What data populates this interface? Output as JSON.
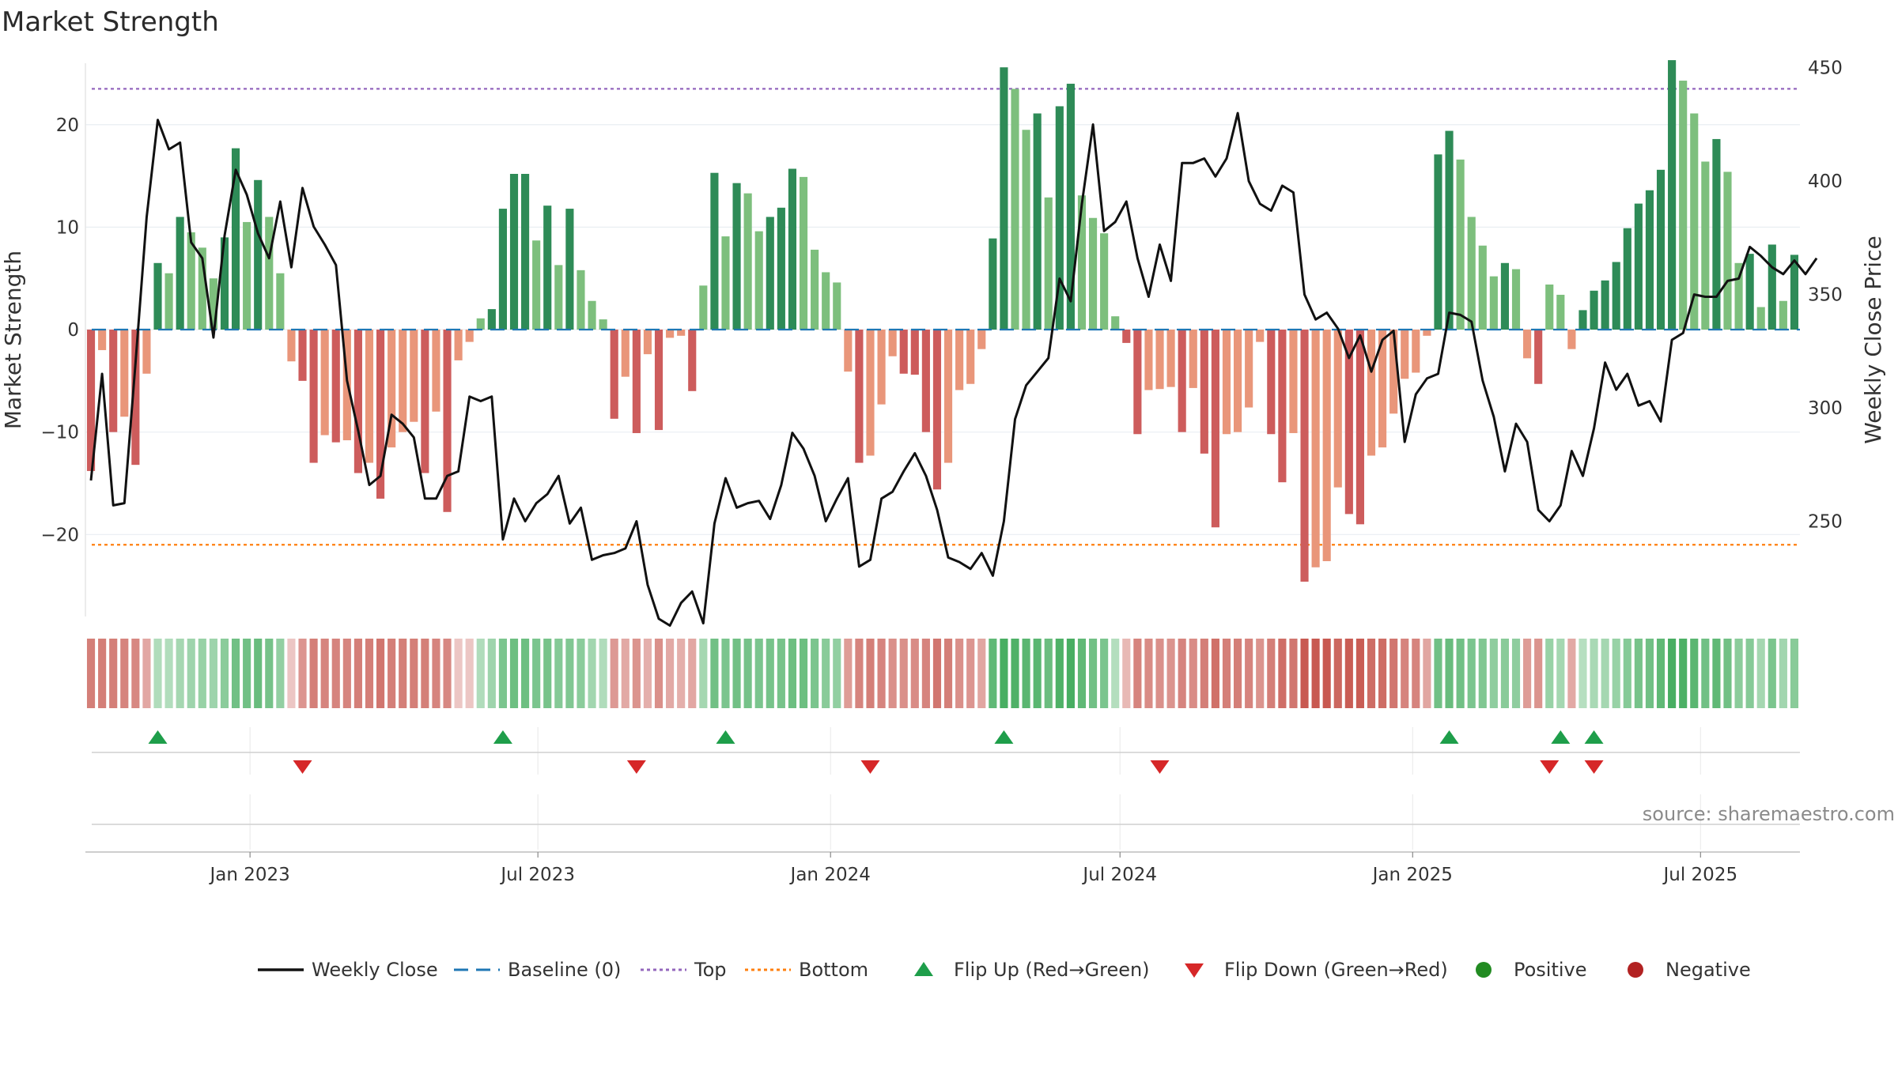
{
  "title": "Market Strength",
  "source": "source: sharemaestro.com",
  "colors": {
    "pos_dark": "#2e8b57",
    "pos_light": "#7dbf7d",
    "neg_dark": "#cd5c5c",
    "neg_light": "#e9967a",
    "line": "#111111",
    "baseline": "#1f77b4",
    "top": "#9467bd",
    "bottom": "#ff7f0e",
    "flip_up": "#1e9e4a",
    "flip_down": "#d62728",
    "positive": "#228b22",
    "negative": "#b22222"
  },
  "chart_data": {
    "type": "bar+line",
    "title": "Market Strength",
    "ylabel_left": "Market Strength",
    "ylabel_right": "Weekly Close Price",
    "ylim_left": [
      -28,
      26
    ],
    "ylim_right": [
      208,
      452
    ],
    "yticks_left": [
      20,
      10,
      0,
      -10,
      -20
    ],
    "ytick_labels_left": [
      "20",
      "10",
      "0",
      "−10",
      "−20"
    ],
    "yticks_right": [
      450,
      400,
      350,
      300,
      250
    ],
    "ytick_labels_right": [
      "450",
      "400",
      "350",
      "300",
      "250"
    ],
    "top_level": 23.5,
    "bottom_level": -21,
    "baseline": 0,
    "x_start": "2022-09-23",
    "week_days": 7,
    "x_ticks": [
      {
        "date": "2023-01-01",
        "label": "Jan 2023"
      },
      {
        "date": "2023-07-01",
        "label": "Jul 2023"
      },
      {
        "date": "2024-01-01",
        "label": "Jan 2024"
      },
      {
        "date": "2024-07-01",
        "label": "Jul 2024"
      },
      {
        "date": "2025-01-01",
        "label": "Jan 2025"
      },
      {
        "date": "2025-07-01",
        "label": "Jul 2025"
      }
    ],
    "strength": [
      -13.8,
      -2,
      -10,
      -8.5,
      -13.2,
      -4.3,
      6.5,
      5.5,
      11,
      9.5,
      8,
      5,
      9,
      17.7,
      10.5,
      14.6,
      11,
      5.5,
      -3.1,
      -5,
      -13,
      -10.3,
      -11,
      -10.8,
      -14,
      -13,
      -16.5,
      -11.5,
      -10,
      -9,
      -14,
      -8,
      -17.8,
      -3,
      -1.2,
      1.1,
      2,
      11.8,
      15.2,
      15.2,
      8.7,
      12.1,
      6.3,
      11.8,
      5.8,
      2.8,
      1,
      -8.7,
      -4.6,
      -10.1,
      -2.4,
      -9.8,
      -0.8,
      -0.6,
      -6,
      4.3,
      15.3,
      9.1,
      14.3,
      13.3,
      9.6,
      11,
      11.9,
      15.7,
      14.9,
      7.8,
      5.6,
      4.6,
      -4.1,
      -13,
      -12.3,
      -7.3,
      -2.6,
      -4.3,
      -4.4,
      -10,
      -15.6,
      -13,
      -5.9,
      -5.3,
      -1.9,
      8.9,
      25.6,
      23.5,
      19.5,
      21.1,
      12.9,
      21.8,
      24,
      13.1,
      10.9,
      9.4,
      1.3,
      -1.3,
      -10.2,
      -5.9,
      -5.8,
      -5.6,
      -10,
      -5.7,
      -12.1,
      -19.3,
      -10.2,
      -10,
      -7.6,
      -1.2,
      -10.2,
      -14.9,
      -10.1,
      -24.6,
      -23.2,
      -22.6,
      -15.4,
      -18,
      -19,
      -12.3,
      -11.5,
      -8.2,
      -4.8,
      -4.2,
      -0.6,
      17.1,
      19.4,
      16.6,
      11,
      8.2,
      5.2,
      6.5,
      5.9,
      -2.8,
      -5.3,
      4.4,
      3.4,
      -1.9,
      1.9,
      3.8,
      4.8,
      6.6,
      9.9,
      12.3,
      13.6,
      15.6,
      26.3,
      24.3,
      21.1,
      16.4,
      18.6,
      15.4,
      6.5,
      7.4,
      2.2,
      8.3,
      2.8,
      7.3
    ],
    "weekly_close": [
      268,
      315,
      257,
      258,
      320,
      384,
      427,
      414,
      417,
      373,
      366,
      331,
      376,
      405,
      394,
      377,
      366,
      391,
      362,
      397,
      380,
      372,
      363,
      312,
      290,
      266,
      270,
      297,
      293,
      287,
      260,
      260,
      270,
      272,
      305,
      303,
      305,
      242,
      260,
      250,
      258,
      262,
      270,
      249,
      256,
      233,
      235,
      236,
      238,
      250,
      222,
      207,
      204,
      214,
      219,
      205,
      249,
      269,
      256,
      258,
      259,
      251,
      266,
      289,
      282,
      270,
      250,
      260,
      269,
      230,
      233,
      260,
      263,
      272,
      280,
      270,
      255,
      234,
      232,
      229,
      236,
      226,
      250,
      295,
      310,
      316,
      322,
      357,
      347,
      390,
      425,
      378,
      382,
      391,
      366,
      349,
      372,
      356,
      408,
      408,
      410,
      402,
      410,
      430,
      400,
      390,
      387,
      398,
      395,
      350,
      339,
      342,
      335,
      322,
      332,
      316,
      330,
      334,
      285,
      306,
      313,
      315,
      342,
      341,
      338,
      312,
      296,
      272,
      293,
      285,
      255,
      250,
      257,
      281,
      270,
      291,
      320,
      308,
      315,
      301,
      303,
      294,
      330,
      333,
      350,
      349,
      349,
      356,
      357,
      371,
      367,
      362,
      359,
      365,
      359,
      366
    ],
    "heat_strength": [
      -4.5,
      -4.5,
      -4.5,
      -4.2,
      -4,
      -2.5,
      1.8,
      1.7,
      2.2,
      2.5,
      2.8,
      2.5,
      3.3,
      4.5,
      4.5,
      4.8,
      4.3,
      3,
      -1,
      -3.3,
      -4.5,
      -4.2,
      -4.2,
      -4.2,
      -4.5,
      -4.5,
      -4.8,
      -4.5,
      -4.5,
      -4.5,
      -4.5,
      -4.2,
      -4,
      -1,
      -1,
      1.8,
      2.5,
      4,
      4.6,
      4.6,
      4,
      4.2,
      3.6,
      3.8,
      3.3,
      2.3,
      1.8,
      -3.2,
      -2.4,
      -3.4,
      -2.1,
      -3.6,
      -2.4,
      -2.1,
      -2.5,
      2.2,
      4.5,
      4,
      4.5,
      4.3,
      4,
      4.2,
      4.2,
      4.6,
      4.6,
      4,
      3.4,
      3.1,
      -3.1,
      -4.2,
      -4.5,
      -4.2,
      -3.6,
      -3.6,
      -3.8,
      -4.2,
      -4.8,
      -4.5,
      -3.6,
      -3.3,
      -2.6,
      5.2,
      6.2,
      5.9,
      5.5,
      5.5,
      4.7,
      5.9,
      6.2,
      5.2,
      4.5,
      4,
      1.6,
      -1.7,
      -4.2,
      -3.8,
      -3.6,
      -3.4,
      -4.2,
      -3.8,
      -4.5,
      -5.1,
      -4.5,
      -4.5,
      -4.2,
      -3.4,
      -4.5,
      -5.2,
      -4.8,
      -6.2,
      -6.2,
      -6.2,
      -5.6,
      -6,
      -6,
      -5.3,
      -5.3,
      -4.8,
      -4.2,
      -4.2,
      -2.6,
      4.5,
      4.8,
      4.5,
      4,
      3.8,
      3.2,
      3.4,
      3.2,
      -3.1,
      -3.4,
      2.8,
      2.2,
      -2.4,
      1.5,
      2,
      2.2,
      2.8,
      3.5,
      4.2,
      4.5,
      5.2,
      6.2,
      6,
      5.5,
      4.5,
      5.2,
      4.5,
      3.3,
      3.5,
      2.2,
      4,
      2.3,
      3.4
    ],
    "flip_up_weeks": [
      6,
      37,
      57,
      82,
      122,
      132,
      135
    ],
    "flip_down_weeks": [
      19,
      49,
      70,
      96,
      131,
      135
    ],
    "strength_bars_in_panel": "bars colored by sign; darker shade = rising, lighter = falling",
    "legend": [
      {
        "key": "line",
        "label": "Weekly Close"
      },
      {
        "key": "baseline",
        "label": "Baseline (0)"
      },
      {
        "key": "top",
        "label": "Top"
      },
      {
        "key": "bottom",
        "label": "Bottom"
      },
      {
        "key": "flip_up",
        "label": "Flip Up (Red→Green)"
      },
      {
        "key": "flip_down",
        "label": "Flip Down (Green→Red)"
      },
      {
        "key": "positive",
        "label": "Positive"
      },
      {
        "key": "negative",
        "label": "Negative"
      }
    ]
  }
}
